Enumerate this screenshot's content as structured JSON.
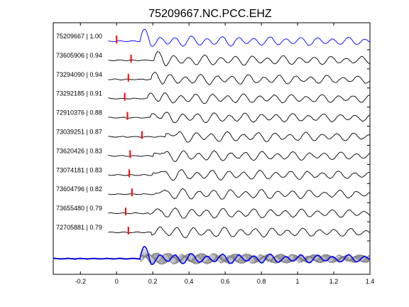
{
  "chart_data": {
    "type": "line",
    "title": "75209667.NC.PCC.EHZ",
    "xlabel": "",
    "ylabel": "",
    "xlim": [
      -0.35,
      1.4
    ],
    "x_ticks": [
      "-0.2",
      "0",
      "0.2",
      "0.4",
      "0.6",
      "0.8",
      "1",
      "1.2",
      "1.4"
    ],
    "x_tick_values": [
      -0.2,
      0,
      0.2,
      0.4,
      0.6,
      0.8,
      1.0,
      1.2,
      1.4
    ],
    "grid": false,
    "template_color": "#0000ff",
    "trace_color": "#000000",
    "pick_color": "#ff0000",
    "stack_trace_color": "#808080",
    "traces": [
      {
        "label": "75209667 | 1.00",
        "event_id": "75209667",
        "correlation": 1.0,
        "pick_time": 0.0,
        "template": true
      },
      {
        "label": "73605906 | 0.94",
        "event_id": "73605906",
        "correlation": 0.94,
        "pick_time": 0.08
      },
      {
        "label": "73294090 | 0.94",
        "event_id": "73294090",
        "correlation": 0.94,
        "pick_time": 0.065
      },
      {
        "label": "73292185 | 0.91",
        "event_id": "73292185",
        "correlation": 0.91,
        "pick_time": 0.045
      },
      {
        "label": "72910376 | 0.88",
        "event_id": "72910376",
        "correlation": 0.88,
        "pick_time": 0.06
      },
      {
        "label": "73039251 | 0.87",
        "event_id": "73039251",
        "correlation": 0.87,
        "pick_time": 0.14
      },
      {
        "label": "73620426 | 0.83",
        "event_id": "73620426",
        "correlation": 0.83,
        "pick_time": 0.075
      },
      {
        "label": "73074181 | 0.83",
        "event_id": "73074181",
        "correlation": 0.83,
        "pick_time": 0.07
      },
      {
        "label": "73604796 | 0.82",
        "event_id": "73604796",
        "correlation": 0.82,
        "pick_time": 0.085
      },
      {
        "label": "73655480 | 0.79",
        "event_id": "73655480",
        "correlation": 0.79,
        "pick_time": 0.05
      },
      {
        "label": "72705881 | 0.79",
        "event_id": "72705881",
        "correlation": 0.79,
        "pick_time": 0.065
      }
    ],
    "stack": {
      "present": true,
      "overlay": "all aligned traces in gray with template in blue"
    }
  }
}
